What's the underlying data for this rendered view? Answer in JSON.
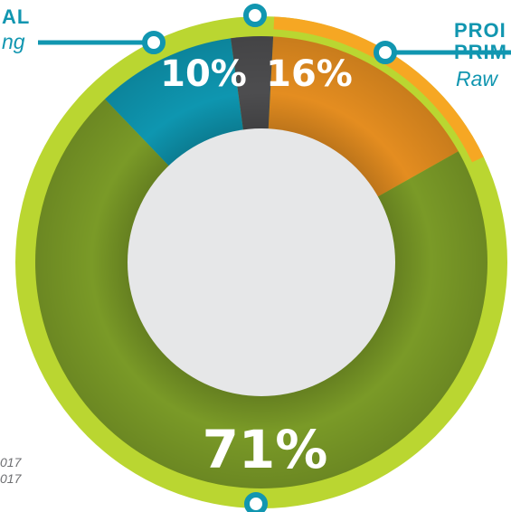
{
  "chart_data": {
    "type": "pie",
    "style": "donut",
    "slices": [
      {
        "label": "16%",
        "value": 16,
        "color": "#e48d20"
      },
      {
        "label": "71%",
        "value": 71,
        "color": "#7a9a27"
      },
      {
        "label": "10%",
        "value": 10,
        "color": "#0e96b0"
      },
      {
        "label": "",
        "value": 3,
        "color": "#4d4d4f"
      }
    ],
    "outer_ring_color": "#bad631",
    "outer_ring_accent_color": "#f6a723",
    "center_color": "#e6e7e8",
    "accent_color": "#1196b0"
  },
  "labels": {
    "left_header": "AL",
    "left_sub": "ng",
    "right_header_1": "PROI",
    "right_header_2": "PRIM",
    "right_sub": "Raw",
    "footnote_1": "017",
    "footnote_2": "017"
  }
}
